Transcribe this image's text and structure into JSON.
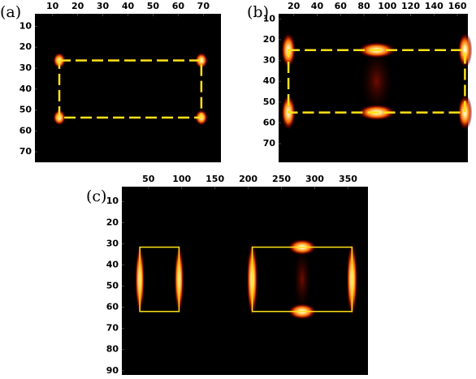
{
  "chart_data": [
    {
      "type": "image",
      "label": "(a)",
      "xlim": [
        3,
        77
      ],
      "ylim": [
        4,
        75
      ],
      "xticks": [
        10,
        20,
        30,
        40,
        50,
        60,
        70
      ],
      "yticks": [
        10,
        20,
        30,
        40,
        50,
        60,
        70
      ],
      "rectangles": [
        {
          "x": [
            12.7,
            69.2
          ],
          "y": [
            26.3,
            53.6
          ]
        }
      ],
      "color": "#ffe21a",
      "dashed": true
    },
    {
      "type": "image",
      "label": "(b)",
      "xlim": [
        7,
        169
      ],
      "ylim": [
        7.5,
        79
      ],
      "xticks": [
        20,
        40,
        60,
        80,
        100,
        120,
        140,
        160
      ],
      "yticks": [
        10,
        20,
        30,
        40,
        50,
        60,
        70
      ],
      "rectangles": [
        {
          "x": [
            15.4,
            166.5
          ],
          "y": [
            25,
            55
          ]
        }
      ],
      "color": "#ffe21a",
      "dashed": true
    },
    {
      "type": "image",
      "label": "(c)",
      "xlim": [
        10,
        380
      ],
      "ylim": [
        3,
        92
      ],
      "xticks": [
        50,
        100,
        150,
        200,
        250,
        300,
        350
      ],
      "yticks": [
        10,
        20,
        30,
        40,
        50,
        60,
        70,
        80,
        90
      ],
      "rectangles": [
        {
          "x": [
            37,
            96
          ],
          "y": [
            31.6,
            62
          ]
        },
        {
          "x": [
            206,
            356
          ],
          "y": [
            31.6,
            62
          ]
        }
      ],
      "color": "#ffe21a",
      "dashed": false
    }
  ]
}
